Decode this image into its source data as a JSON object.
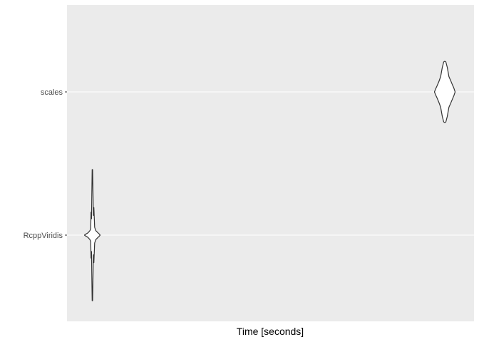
{
  "chart_data": {
    "type": "violin",
    "orientation": "horizontal",
    "xlabel": "Time [seconds]",
    "ylabel": "",
    "x_tick_labels_shown": false,
    "grid": true,
    "legend": "none",
    "categories": [
      "RcppViridis",
      "scales"
    ],
    "series": [
      {
        "category": "RcppViridis",
        "color": "#333333",
        "fill": "#ffffff",
        "profile": [
          {
            "t": 0.0,
            "w": 0.0
          },
          {
            "t": 0.05,
            "w": 0.01
          },
          {
            "t": 0.12,
            "w": 0.02
          },
          {
            "t": 0.2,
            "w": 0.03
          },
          {
            "t": 0.28,
            "w": 0.05
          },
          {
            "t": 0.35,
            "w": 0.07
          },
          {
            "t": 0.4,
            "w": 0.1
          },
          {
            "t": 0.42,
            "w": 0.35
          },
          {
            "t": 0.45,
            "w": 0.25
          },
          {
            "t": 0.47,
            "w": 0.6
          },
          {
            "t": 0.49,
            "w": 1.0
          },
          {
            "t": 0.52,
            "w": 1.0
          },
          {
            "t": 0.55,
            "w": 0.55
          },
          {
            "t": 0.57,
            "w": 0.3
          },
          {
            "t": 0.6,
            "w": 0.42
          },
          {
            "t": 0.65,
            "w": 0.12
          },
          {
            "t": 0.72,
            "w": 0.07
          },
          {
            "t": 0.8,
            "w": 0.05
          },
          {
            "t": 0.88,
            "w": 0.03
          },
          {
            "t": 0.95,
            "w": 0.015
          },
          {
            "t": 1.0,
            "w": 0.0
          }
        ]
      },
      {
        "category": "scales",
        "color": "#333333",
        "fill": "#ffffff",
        "profile": [
          {
            "t": 0.0,
            "w": 0.0
          },
          {
            "t": 0.06,
            "w": 0.1
          },
          {
            "t": 0.14,
            "w": 0.22
          },
          {
            "t": 0.22,
            "w": 0.35
          },
          {
            "t": 0.3,
            "w": 0.5
          },
          {
            "t": 0.38,
            "w": 0.8
          },
          {
            "t": 0.45,
            "w": 0.98
          },
          {
            "t": 0.5,
            "w": 1.0
          },
          {
            "t": 0.55,
            "w": 0.98
          },
          {
            "t": 0.62,
            "w": 0.8
          },
          {
            "t": 0.7,
            "w": 0.5
          },
          {
            "t": 0.78,
            "w": 0.38
          },
          {
            "t": 0.86,
            "w": 0.25
          },
          {
            "t": 0.94,
            "w": 0.12
          },
          {
            "t": 1.0,
            "w": 0.0
          }
        ]
      }
    ]
  }
}
